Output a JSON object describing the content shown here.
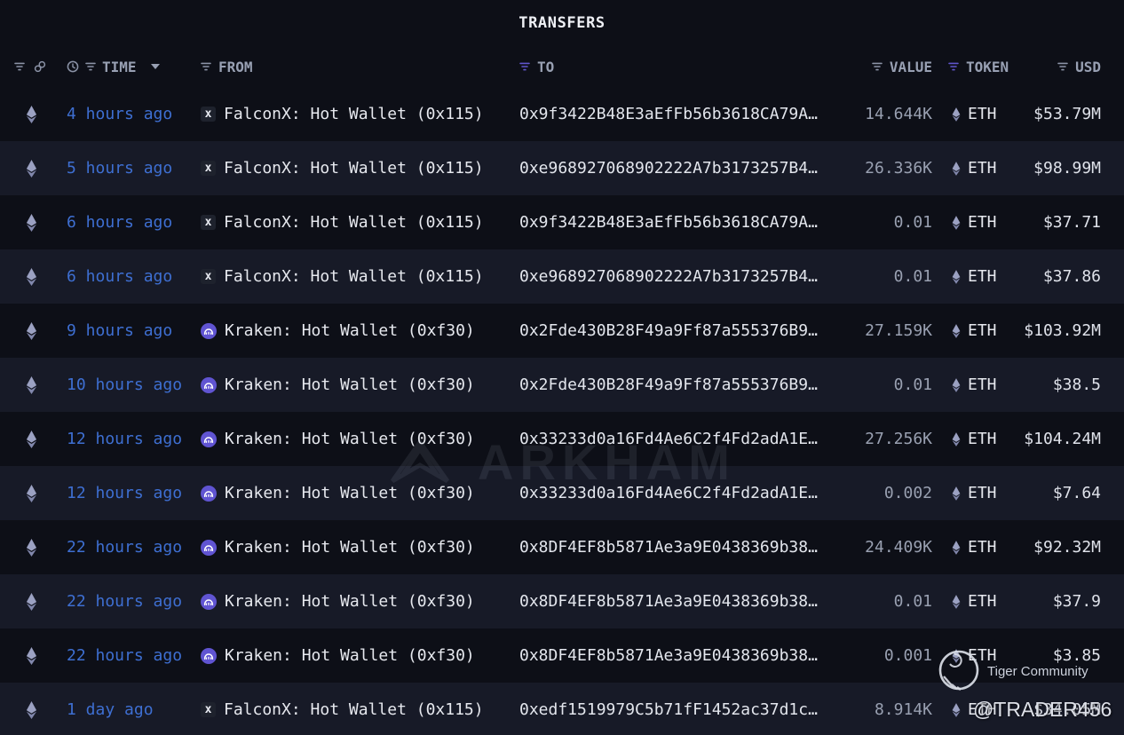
{
  "title": "TRANSFERS",
  "colors": {
    "background": "#0d0f17",
    "row_alt": "#171a27",
    "time_link_blue": "#3e6fd2",
    "active_filter_purple": "#6055cc",
    "kraken_badge_purple": "#6054d2",
    "header_gray": "#98a0b3"
  },
  "header": {
    "time_label": "TIME",
    "from_label": "FROM",
    "to_label": "TO",
    "value_label": "VALUE",
    "token_label": "TOKEN",
    "usd_label": "USD",
    "icons": [
      "funnel-filter-icon",
      "link-icon",
      "clock-icon",
      "caret-down-icon"
    ]
  },
  "watermarks": {
    "arkham_text": "ARKHAM",
    "community": "Tiger Community",
    "handle": "@TRADER456"
  },
  "table": {
    "rows": [
      {
        "time": "4 hours ago",
        "from_icon": "falconx",
        "from": "FalconX: Hot Wallet (0x115)",
        "to": "0x9f3422B48E3aEfFb56b3618CA79A…",
        "value": "14.644K",
        "token": "ETH",
        "usd": "$53.79M"
      },
      {
        "time": "5 hours ago",
        "from_icon": "falconx",
        "from": "FalconX: Hot Wallet (0x115)",
        "to": "0xe968927068902222A7b3173257B4…",
        "value": "26.336K",
        "token": "ETH",
        "usd": "$98.99M"
      },
      {
        "time": "6 hours ago",
        "from_icon": "falconx",
        "from": "FalconX: Hot Wallet (0x115)",
        "to": "0x9f3422B48E3aEfFb56b3618CA79A…",
        "value": "0.01",
        "token": "ETH",
        "usd": "$37.71"
      },
      {
        "time": "6 hours ago",
        "from_icon": "falconx",
        "from": "FalconX: Hot Wallet (0x115)",
        "to": "0xe968927068902222A7b3173257B4…",
        "value": "0.01",
        "token": "ETH",
        "usd": "$37.86"
      },
      {
        "time": "9 hours ago",
        "from_icon": "kraken",
        "from": "Kraken: Hot Wallet (0xf30)",
        "to": "0x2Fde430B28F49a9Ff87a555376B9…",
        "value": "27.159K",
        "token": "ETH",
        "usd": "$103.92M"
      },
      {
        "time": "10 hours ago",
        "from_icon": "kraken",
        "from": "Kraken: Hot Wallet (0xf30)",
        "to": "0x2Fde430B28F49a9Ff87a555376B9…",
        "value": "0.01",
        "token": "ETH",
        "usd": "$38.5"
      },
      {
        "time": "12 hours ago",
        "from_icon": "kraken",
        "from": "Kraken: Hot Wallet (0xf30)",
        "to": "0x33233d0a16Fd4Ae6C2f4Fd2adA1E…",
        "value": "27.256K",
        "token": "ETH",
        "usd": "$104.24M"
      },
      {
        "time": "12 hours ago",
        "from_icon": "kraken",
        "from": "Kraken: Hot Wallet (0xf30)",
        "to": "0x33233d0a16Fd4Ae6C2f4Fd2adA1E…",
        "value": "0.002",
        "token": "ETH",
        "usd": "$7.64"
      },
      {
        "time": "22 hours ago",
        "from_icon": "kraken",
        "from": "Kraken: Hot Wallet (0xf30)",
        "to": "0x8DF4EF8b5871Ae3a9E0438369b38…",
        "value": "24.409K",
        "token": "ETH",
        "usd": "$92.32M"
      },
      {
        "time": "22 hours ago",
        "from_icon": "kraken",
        "from": "Kraken: Hot Wallet (0xf30)",
        "to": "0x8DF4EF8b5871Ae3a9E0438369b38…",
        "value": "0.01",
        "token": "ETH",
        "usd": "$37.9"
      },
      {
        "time": "22 hours ago",
        "from_icon": "kraken",
        "from": "Kraken: Hot Wallet (0xf30)",
        "to": "0x8DF4EF8b5871Ae3a9E0438369b38…",
        "value": "0.001",
        "token": "ETH",
        "usd": "$3.85"
      },
      {
        "time": "1 day ago",
        "from_icon": "falconx",
        "from": "FalconX: Hot Wallet (0x115)",
        "to": "0xedf1519979C5b71fF1452ac37d1c…",
        "value": "8.914K",
        "token": "ETH",
        "usd": "$34.05M"
      }
    ]
  }
}
